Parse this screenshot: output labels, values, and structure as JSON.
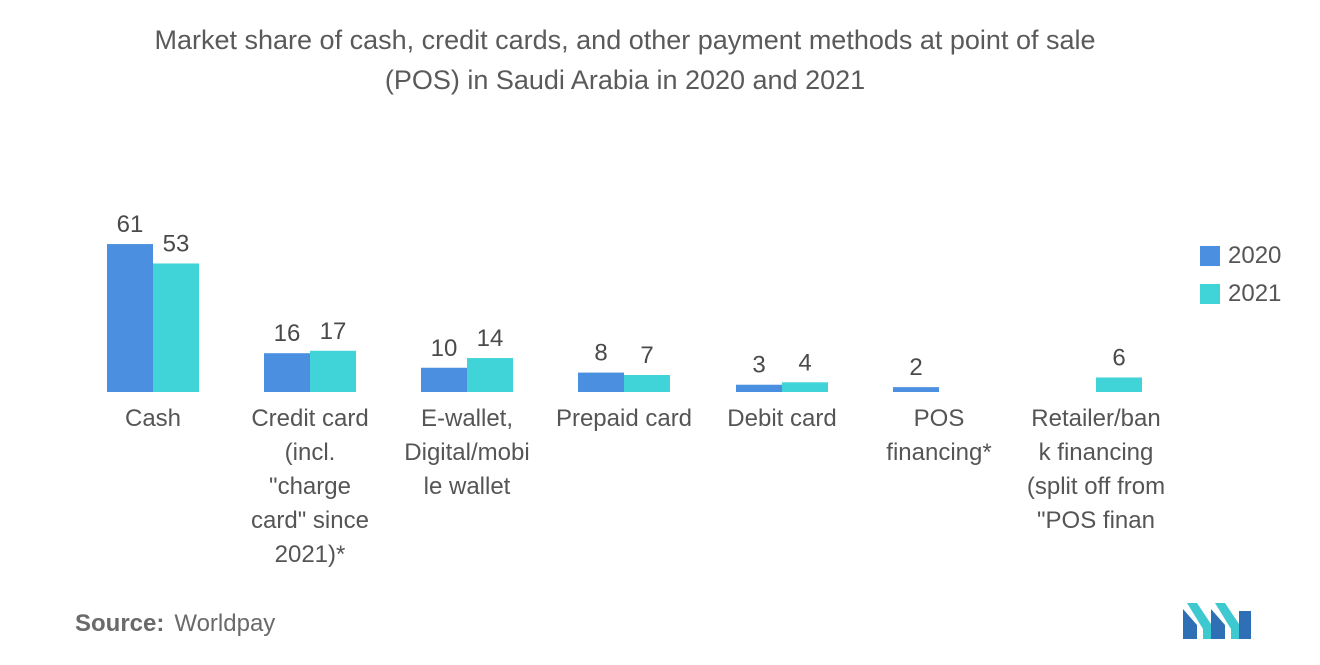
{
  "title_line1": "Market share of cash, credit cards, and other payment methods at point of sale",
  "title_line2": "(POS) in Saudi Arabia in 2020 and 2021",
  "source_label": "Source:",
  "source_value": "Worldpay",
  "logo_icon": "mordor-intelligence-logo-icon",
  "colors": {
    "s2020": "#4a8fe0",
    "s2021": "#40d4d8",
    "text": "#555555"
  },
  "chart_data": {
    "type": "bar",
    "title": "Market share of cash, credit cards, and other payment methods at point of sale (POS) in Saudi Arabia in 2020 and 2021",
    "categories": [
      "Cash",
      "Credit card (incl. \"charge card\" since 2021)*",
      "E-wallet, Digital/mobile wallet",
      "Prepaid card",
      "Debit card",
      "POS financing*",
      "Retailer/bank financing (split off from \"POS finan"
    ],
    "category_lines": [
      [
        "Cash"
      ],
      [
        "Credit card",
        "(incl.",
        "\"charge",
        "card\" since",
        "2021)*"
      ],
      [
        "E-wallet,",
        "Digital/mobi",
        "le wallet"
      ],
      [
        "Prepaid card"
      ],
      [
        "Debit card"
      ],
      [
        "POS",
        "financing*"
      ],
      [
        "Retailer/ban",
        "k financing",
        "(split off from",
        "\"POS finan"
      ]
    ],
    "series": [
      {
        "name": "2020",
        "values": [
          61,
          16,
          10,
          8,
          3,
          2,
          null
        ]
      },
      {
        "name": "2021",
        "values": [
          53,
          17,
          14,
          7,
          4,
          null,
          6
        ]
      }
    ],
    "legend_position": "right",
    "grid": false,
    "xlabel": "",
    "ylabel": ""
  }
}
